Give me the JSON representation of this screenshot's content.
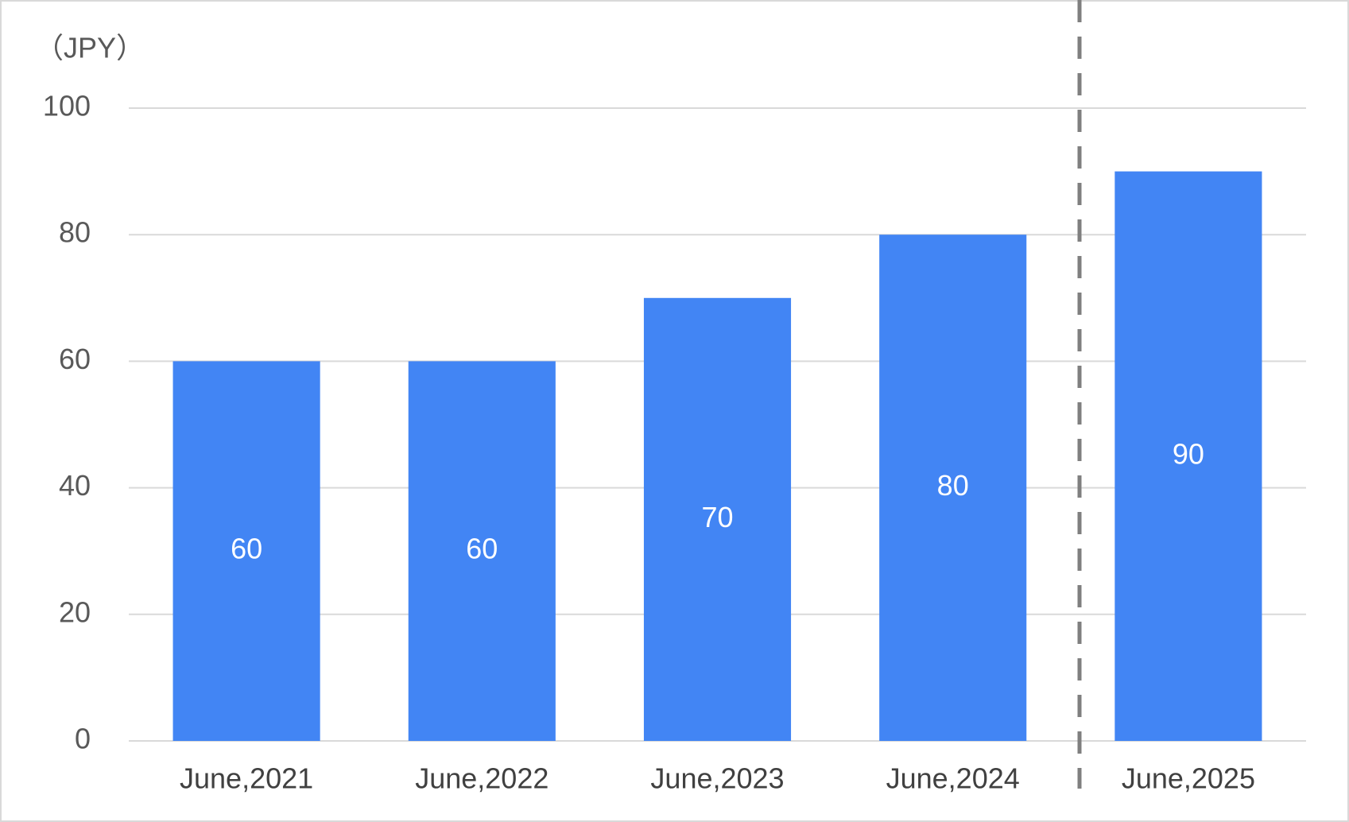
{
  "chart_data": {
    "type": "bar",
    "y_label": "（JPY）",
    "categories": [
      "June,2021",
      "June,2022",
      "June,2023",
      "June,2024",
      "June,2025"
    ],
    "values": [
      60,
      60,
      70,
      80,
      90
    ],
    "color": "#4285f4",
    "ylim": [
      0,
      100
    ],
    "yticks": [
      0,
      20,
      40,
      60,
      80,
      100
    ],
    "grid": true
  }
}
